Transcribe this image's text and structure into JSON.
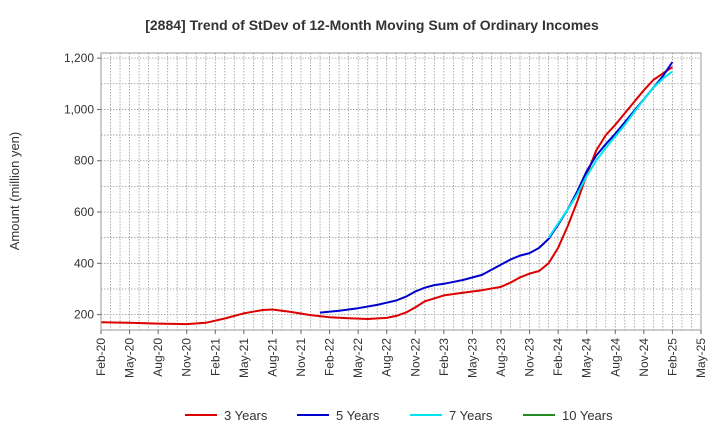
{
  "chart_data": {
    "type": "line",
    "title": "[2884]  Trend of StDev of 12-Month Moving Sum of Ordinary Incomes",
    "ylabel": "Amount (million yen)",
    "xlabel": "",
    "ylim": [
      140,
      1220
    ],
    "yticks": [
      200,
      400,
      600,
      800,
      1000,
      1200
    ],
    "ytick_labels": [
      "200",
      "400",
      "600",
      "800",
      "1,000",
      "1,200"
    ],
    "xlim": [
      "2020-02",
      "2025-05"
    ],
    "xtick_labels": [
      "Feb-20",
      "May-20",
      "Aug-20",
      "Nov-20",
      "Feb-21",
      "May-21",
      "Aug-21",
      "Nov-21",
      "Feb-22",
      "May-22",
      "Aug-22",
      "Nov-22",
      "Feb-23",
      "May-23",
      "Aug-23",
      "Nov-23",
      "Feb-24",
      "May-24",
      "Aug-24",
      "Nov-24",
      "Feb-25",
      "May-25"
    ],
    "grid": true,
    "legend_position": "bottom",
    "series": [
      {
        "name": "3 Years",
        "color": "#dd0000",
        "x": [
          "2020-02",
          "2020-05",
          "2020-08",
          "2020-11",
          "2021-01",
          "2021-03",
          "2021-05",
          "2021-07",
          "2021-08",
          "2021-10",
          "2021-12",
          "2022-02",
          "2022-04",
          "2022-06",
          "2022-08",
          "2022-09",
          "2022-10",
          "2022-11",
          "2022-12",
          "2023-02",
          "2023-04",
          "2023-06",
          "2023-08",
          "2023-09",
          "2023-10",
          "2023-11",
          "2023-12",
          "2024-01",
          "2024-02",
          "2024-03",
          "2024-04",
          "2024-05",
          "2024-06",
          "2024-07",
          "2024-08",
          "2024-09",
          "2024-10",
          "2024-11",
          "2024-12",
          "2025-01",
          "2025-02"
        ],
        "y": [
          170,
          168,
          165,
          163,
          168,
          185,
          205,
          218,
          220,
          210,
          198,
          190,
          186,
          183,
          187,
          195,
          208,
          228,
          252,
          275,
          285,
          295,
          308,
          325,
          345,
          360,
          370,
          400,
          460,
          545,
          640,
          745,
          840,
          900,
          940,
          985,
          1030,
          1075,
          1115,
          1140,
          1165
        ]
      },
      {
        "name": "5 Years",
        "color": "#0000cc",
        "x": [
          "2022-01",
          "2022-03",
          "2022-05",
          "2022-07",
          "2022-09",
          "2022-10",
          "2022-11",
          "2022-12",
          "2023-01",
          "2023-02",
          "2023-04",
          "2023-06",
          "2023-07",
          "2023-08",
          "2023-09",
          "2023-10",
          "2023-11",
          "2023-12",
          "2024-01",
          "2024-02",
          "2024-03",
          "2024-04",
          "2024-05",
          "2024-06",
          "2024-07",
          "2024-08",
          "2024-09",
          "2024-10",
          "2024-11",
          "2024-12",
          "2025-01",
          "2025-02"
        ],
        "y": [
          208,
          215,
          225,
          238,
          255,
          270,
          290,
          305,
          315,
          320,
          335,
          355,
          375,
          395,
          415,
          430,
          440,
          460,
          495,
          550,
          610,
          680,
          760,
          820,
          865,
          905,
          950,
          995,
          1040,
          1085,
          1130,
          1185
        ]
      },
      {
        "name": "7 Years",
        "color": "#00e5ee",
        "x": [
          "2024-01",
          "2024-02",
          "2024-03",
          "2024-04",
          "2024-05",
          "2024-06",
          "2024-07",
          "2024-08",
          "2024-09",
          "2024-10",
          "2024-11",
          "2024-12",
          "2025-01",
          "2025-02"
        ],
        "y": [
          500,
          555,
          610,
          670,
          740,
          800,
          850,
          895,
          940,
          990,
          1040,
          1085,
          1120,
          1148
        ]
      },
      {
        "name": "10 Years",
        "color": "#228b22",
        "x": [],
        "y": []
      }
    ]
  }
}
